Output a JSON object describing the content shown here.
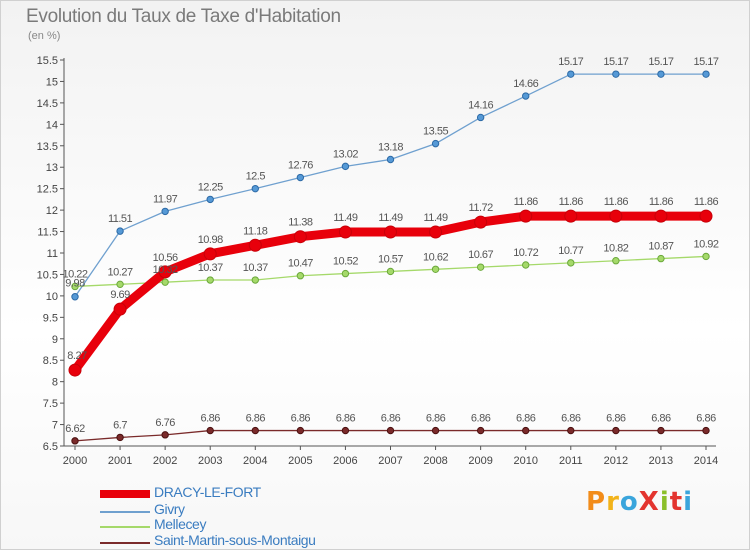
{
  "header": {
    "title": "Evolution du Taux de Taxe d'Habitation",
    "unit": "(en %)"
  },
  "logo": {
    "text": "ProXiti",
    "colors": [
      "#f28c1a",
      "#f2b31a",
      "#3aa5dc",
      "#e3342f",
      "#8bbf2a",
      "#e3342f",
      "#3aa5dc"
    ]
  },
  "chart_data": {
    "type": "line",
    "x": [
      "2000",
      "2001",
      "2002",
      "2003",
      "2004",
      "2005",
      "2006",
      "2007",
      "2008",
      "2009",
      "2010",
      "2011",
      "2012",
      "2013",
      "2014"
    ],
    "ylim": [
      6.5,
      15.5
    ],
    "yticks": [
      "6.5",
      "7",
      "7.5",
      "8",
      "8.5",
      "9",
      "9.5",
      "10",
      "10.5",
      "11",
      "11.5",
      "12",
      "12.5",
      "13",
      "13.5",
      "14",
      "14.5",
      "15",
      "15.5"
    ],
    "grid": false,
    "legend_position": "bottom-left",
    "series": [
      {
        "name": "DRACY-LE-FORT",
        "color": "#e8000b",
        "values": [
          8.27,
          9.69,
          10.56,
          10.98,
          11.18,
          11.38,
          11.49,
          11.49,
          11.49,
          11.72,
          11.86,
          11.86,
          11.86,
          11.86,
          11.86
        ],
        "labels": [
          "8.27",
          "9.69",
          "10.56",
          "10.98",
          "11.18",
          "11.38",
          "11.49",
          "11.49",
          "11.49",
          "11.72",
          "11.86",
          "11.86",
          "11.86",
          "11.86",
          "11.86"
        ]
      },
      {
        "name": "Givry",
        "color": "#6fa0cf",
        "values": [
          9.98,
          11.51,
          11.97,
          12.25,
          12.5,
          12.76,
          13.02,
          13.18,
          13.55,
          14.16,
          14.66,
          15.17,
          15.17,
          15.17,
          15.17
        ],
        "labels": [
          "9.98",
          "11.51",
          "11.97",
          "12.25",
          "12.5",
          "12.76",
          "13.02",
          "13.18",
          "13.55",
          "14.16",
          "14.66",
          "15.17",
          "15.17",
          "15.17",
          "15.17"
        ]
      },
      {
        "name": "Mellecey",
        "color": "#a5d96a",
        "values": [
          10.22,
          10.27,
          10.32,
          10.37,
          10.37,
          10.47,
          10.52,
          10.57,
          10.62,
          10.67,
          10.72,
          10.77,
          10.82,
          10.87,
          10.92
        ],
        "labels": [
          "10.22",
          "10.27",
          "10.32",
          "10.37",
          "10.37",
          "10.47",
          "10.52",
          "10.57",
          "10.62",
          "10.67",
          "10.72",
          "10.77",
          "10.82",
          "10.87",
          "10.92"
        ]
      },
      {
        "name": "Saint-Martin-sous-Montaigu",
        "color": "#7a2a2a",
        "values": [
          6.62,
          6.7,
          6.76,
          6.86,
          6.86,
          6.86,
          6.86,
          6.86,
          6.86,
          6.86,
          6.86,
          6.86,
          6.86,
          6.86,
          6.86
        ],
        "labels": [
          "6.62",
          "6.7",
          "6.76",
          "6.86",
          "6.86",
          "6.86",
          "6.86",
          "6.86",
          "6.86",
          "6.86",
          "6.86",
          "6.86",
          "6.86",
          "6.86",
          "6.86"
        ]
      }
    ]
  }
}
